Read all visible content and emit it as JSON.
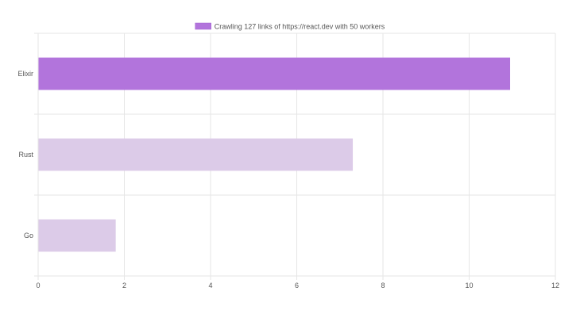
{
  "chart_data": {
    "type": "bar",
    "orientation": "horizontal",
    "categories": [
      "Elixir",
      "Rust",
      "Go"
    ],
    "series": [
      {
        "name": "Crawling 127 links of https://react.dev with 50 workers",
        "values": [
          10.95,
          7.3,
          1.8
        ]
      }
    ],
    "bar_colors": [
      "#b274dc",
      "#dccbe8",
      "#dccbe8"
    ],
    "legend_color": "#b274dc",
    "legend_position": "top",
    "xlim": [
      0,
      12
    ],
    "x_ticks": [
      0,
      2,
      4,
      6,
      8,
      10,
      12
    ],
    "grid": true,
    "title": "",
    "xlabel": "",
    "ylabel": ""
  }
}
